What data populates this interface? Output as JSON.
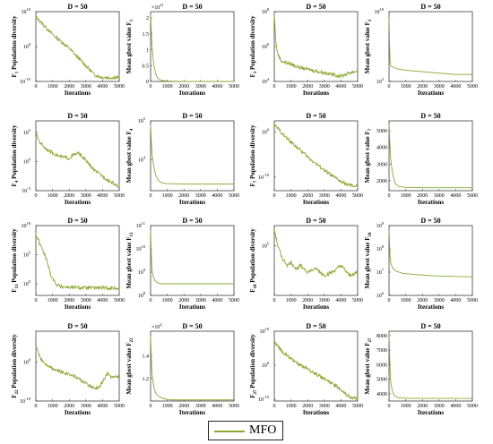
{
  "series_color": "#8aa832",
  "legend": {
    "label": "MFO"
  },
  "chart_data": [
    {
      "type": "line",
      "panel": 1,
      "title": "D = 50",
      "xlabel": "Iterations",
      "ylabel_sym": "F",
      "ylabel_sub": "1",
      "ylabel_text": "Population diversity",
      "scale": "log",
      "xlim": [
        0,
        5000
      ],
      "ylim_exp": [
        -10,
        10
      ],
      "yticks": [
        "10",
        "0",
        "-10"
      ],
      "ymult": null,
      "series": [
        {
          "name": "MFO",
          "x": [
            0,
            300,
            600,
            1000,
            1500,
            2000,
            2500,
            3000,
            3500,
            3800,
            4000,
            4500,
            5000
          ],
          "y": [
            8.5,
            7,
            5.5,
            3.5,
            1.5,
            -0.5,
            -3,
            -5.5,
            -8,
            -8.6,
            -8.8,
            -8.9,
            -8.8
          ]
        }
      ]
    },
    {
      "type": "line",
      "panel": 2,
      "title": "D = 50",
      "xlabel": "Iterations",
      "ylabel_sym": "Mean gbest value F",
      "ylabel_sub": "1",
      "ylabel_text": "",
      "scale": "linear",
      "xlim": [
        0,
        5000
      ],
      "ylim": [
        0,
        2.2
      ],
      "yticks": [
        0,
        0.5,
        1,
        1.5,
        2
      ],
      "ymult": "11",
      "series": [
        {
          "name": "MFO",
          "x": [
            0,
            50,
            100,
            200,
            300,
            400,
            600,
            1000,
            2000,
            3000,
            5000
          ],
          "y": [
            2.1,
            1.5,
            1.0,
            0.5,
            0.25,
            0.12,
            0.04,
            0.01,
            0,
            0,
            0
          ]
        }
      ]
    },
    {
      "type": "line",
      "panel": 3,
      "title": "D = 50",
      "xlabel": "Iterations",
      "ylabel_sym": "F",
      "ylabel_sub": "3",
      "ylabel_text": "Population diversity",
      "scale": "log",
      "xlim": [
        0,
        5000
      ],
      "ylim_exp": [
        4,
        8
      ],
      "yticks": [
        "8",
        "6",
        "4"
      ],
      "ymult": null,
      "series": [
        {
          "name": "MFO",
          "x": [
            0,
            100,
            200,
            400,
            600,
            1000,
            1500,
            2000,
            2500,
            3000,
            3500,
            4000,
            4500,
            5000
          ],
          "y": [
            7.8,
            6.2,
            5.6,
            5.2,
            5.1,
            5.0,
            4.8,
            4.7,
            4.6,
            4.5,
            4.4,
            4.3,
            4.5,
            4.6
          ]
        }
      ]
    },
    {
      "type": "line",
      "panel": 4,
      "title": "D = 50",
      "xlabel": "Iterations",
      "ylabel_sym": "Mean gbest value F",
      "ylabel_sub": "3",
      "ylabel_text": "",
      "scale": "log",
      "xlim": [
        0,
        5000
      ],
      "ylim_exp": [
        5,
        10
      ],
      "yticks": [
        "10",
        "5"
      ],
      "ymult": null,
      "series": [
        {
          "name": "MFO",
          "x": [
            0,
            50,
            100,
            500,
            1000,
            2000,
            3000,
            4000,
            5000
          ],
          "y": [
            9.6,
            6.5,
            6.1,
            5.9,
            5.8,
            5.7,
            5.6,
            5.5,
            5.5
          ]
        }
      ]
    },
    {
      "type": "line",
      "panel": 5,
      "title": "D = 50",
      "xlabel": "Iterations",
      "ylabel_sym": "F",
      "ylabel_sub": "4",
      "ylabel_text": "Population diversity",
      "scale": "log",
      "xlim": [
        0,
        5000
      ],
      "ylim_exp": [
        -5,
        7
      ],
      "yticks": [
        "5",
        "0",
        "-5"
      ],
      "ymult": null,
      "series": [
        {
          "name": "MFO",
          "x": [
            0,
            200,
            500,
            800,
            1000,
            1500,
            2000,
            2300,
            2600,
            2900,
            3200,
            3500,
            4000,
            4500,
            5000
          ],
          "y": [
            4.8,
            3.5,
            2.5,
            1.8,
            1.5,
            0.8,
            0.6,
            1.2,
            1.4,
            0.5,
            -0.5,
            -1.5,
            -2.5,
            -3.5,
            -4.3
          ]
        }
      ]
    },
    {
      "type": "line",
      "panel": 6,
      "title": "D = 50",
      "xlabel": "Iterations",
      "ylabel_sym": "Mean gbest value F",
      "ylabel_sub": "4",
      "ylabel_text": "",
      "scale": "log",
      "xlim": [
        0,
        5000
      ],
      "ylim_exp": [
        3.2,
        5
      ],
      "yticks": [
        "5",
        "4"
      ],
      "ymult": null,
      "series": [
        {
          "name": "MFO",
          "x": [
            0,
            50,
            100,
            200,
            300,
            500,
            700,
            1000,
            2000,
            3000,
            5000
          ],
          "y": [
            4.9,
            4.4,
            4.1,
            3.8,
            3.6,
            3.45,
            3.4,
            3.38,
            3.37,
            3.37,
            3.37
          ]
        }
      ]
    },
    {
      "type": "line",
      "panel": 7,
      "title": "D = 50",
      "xlabel": "Iterations",
      "ylabel_sym": "F",
      "ylabel_sub": "7",
      "ylabel_text": "Population diversity",
      "scale": "log",
      "xlim": [
        0,
        5000
      ],
      "ylim_exp": [
        -13,
        2.5
      ],
      "yticks": [
        "0",
        "-10"
      ],
      "ymult": null,
      "series": [
        {
          "name": "MFO",
          "x": [
            0,
            300,
            600,
            1000,
            1500,
            2000,
            2500,
            3000,
            3500,
            4000,
            4500,
            4800,
            5000
          ],
          "y": [
            1.5,
            0.5,
            -0.8,
            -2.2,
            -3.8,
            -5.5,
            -7,
            -8.5,
            -9.8,
            -11,
            -11.8,
            -12,
            -12
          ]
        }
      ]
    },
    {
      "type": "line",
      "panel": 8,
      "title": "D = 50",
      "xlabel": "Iterations",
      "ylabel_sym": "Mean gbest value F",
      "ylabel_sub": "7",
      "ylabel_text": "",
      "scale": "linear",
      "xlim": [
        0,
        5000
      ],
      "ylim": [
        1400,
        5600
      ],
      "yticks": [
        2000,
        3000,
        4000,
        5000
      ],
      "ymult": null,
      "series": [
        {
          "name": "MFO",
          "x": [
            0,
            50,
            100,
            200,
            300,
            400,
            600,
            1000,
            2000,
            3000,
            5000
          ],
          "y": [
            5400,
            4200,
            3300,
            2500,
            2050,
            1800,
            1650,
            1600,
            1580,
            1580,
            1580
          ]
        }
      ]
    },
    {
      "type": "line",
      "panel": 9,
      "title": "D = 50",
      "xlabel": "Iterations",
      "ylabel_sym": "F",
      "ylabel_sub": "13",
      "ylabel_text": "Population diversity",
      "scale": "log",
      "xlim": [
        0,
        5000
      ],
      "ylim_exp": [
        -2,
        10
      ],
      "yticks": [
        "10",
        "5",
        "0"
      ],
      "ymult": null,
      "series": [
        {
          "name": "MFO",
          "x": [
            0,
            300,
            600,
            900,
            1200,
            1500,
            2000,
            3000,
            4000,
            5000
          ],
          "y": [
            8.5,
            6.5,
            4.5,
            1.5,
            0,
            -0.5,
            -0.6,
            -0.7,
            -0.7,
            -0.8
          ]
        }
      ]
    },
    {
      "type": "line",
      "panel": 10,
      "title": "D = 50",
      "xlabel": "Iterations",
      "ylabel_sym": "Mean gbest value F",
      "ylabel_sub": "13",
      "ylabel_text": "",
      "scale": "log",
      "xlim": [
        0,
        5000
      ],
      "ylim_exp": [
        8,
        11
      ],
      "yticks": [
        "11",
        "10",
        "9",
        "8"
      ],
      "ymult": null,
      "series": [
        {
          "name": "MFO",
          "x": [
            0,
            50,
            100,
            200,
            400,
            600,
            1000,
            2000,
            3000,
            5000
          ],
          "y": [
            10.8,
            9.5,
            9,
            8.7,
            8.55,
            8.5,
            8.5,
            8.5,
            8.5,
            8.5
          ]
        }
      ]
    },
    {
      "type": "line",
      "panel": 11,
      "title": "D = 50",
      "xlabel": "Iterations",
      "ylabel_sym": "F",
      "ylabel_sub": "18",
      "ylabel_text": "Population diversity",
      "scale": "log",
      "xlim": [
        0,
        5000
      ],
      "ylim_exp": [
        3.5,
        5.6
      ],
      "yticks": [
        "5"
      ],
      "ymult": null,
      "series": [
        {
          "name": "MFO",
          "x": [
            0,
            200,
            500,
            800,
            1000,
            1300,
            1600,
            2000,
            2500,
            3000,
            3500,
            4000,
            4500,
            5000
          ],
          "y": [
            5.5,
            5.0,
            4.6,
            4.4,
            4.5,
            4.3,
            4.4,
            4.2,
            4.3,
            4.1,
            4.2,
            4.4,
            4.1,
            4.2
          ]
        }
      ]
    },
    {
      "type": "line",
      "panel": 12,
      "title": "D = 50",
      "xlabel": "Iterations",
      "ylabel_sym": "Mean gbest value F",
      "ylabel_sub": "18",
      "ylabel_text": "",
      "scale": "log",
      "xlim": [
        0,
        5000
      ],
      "ylim_exp": [
        6,
        9
      ],
      "yticks": [
        "9",
        "8",
        "7",
        "6"
      ],
      "ymult": null,
      "series": [
        {
          "name": "MFO",
          "x": [
            0,
            50,
            100,
            200,
            400,
            800,
            1500,
            2500,
            3500,
            5000
          ],
          "y": [
            8.8,
            7.8,
            7.4,
            7.2,
            7.05,
            6.95,
            6.9,
            6.85,
            6.82,
            6.8
          ]
        }
      ]
    },
    {
      "type": "line",
      "panel": 13,
      "title": "D = 50",
      "xlabel": "Iterations",
      "ylabel_sym": "F",
      "ylabel_sub": "22",
      "ylabel_text": "Population diversity",
      "scale": "log",
      "xlim": [
        0,
        5000
      ],
      "ylim_exp": [
        -10,
        8
      ],
      "yticks": [
        "0",
        "-10"
      ],
      "ymult": null,
      "series": [
        {
          "name": "MFO",
          "x": [
            0,
            300,
            600,
            1000,
            1500,
            2000,
            2500,
            3000,
            3500,
            3800,
            4000,
            4300,
            4600,
            5000
          ],
          "y": [
            4,
            1,
            -0.5,
            -1.5,
            -2.5,
            -3,
            -4,
            -5.5,
            -6.8,
            -6.5,
            -5,
            -3,
            -4,
            -3.5
          ]
        }
      ]
    },
    {
      "type": "line",
      "panel": 14,
      "title": "D = 50",
      "xlabel": "Iterations",
      "ylabel_sym": "Mean gbest value F",
      "ylabel_sub": "22",
      "ylabel_text": "",
      "scale": "linear",
      "xlim": [
        0,
        5000
      ],
      "ylim": [
        1,
        1.62
      ],
      "yticks": [
        1.2,
        1.4
      ],
      "ymult": "4",
      "series": [
        {
          "name": "MFO",
          "x": [
            0,
            50,
            100,
            200,
            300,
            500,
            800,
            1200,
            2000,
            3000,
            5000
          ],
          "y": [
            1.58,
            1.35,
            1.22,
            1.12,
            1.07,
            1.04,
            1.02,
            1.01,
            1.01,
            1.01,
            1.01
          ]
        }
      ]
    },
    {
      "type": "line",
      "panel": 15,
      "title": "D = 50",
      "xlabel": "Iterations",
      "ylabel_sym": "F",
      "ylabel_sub": "27",
      "ylabel_text": "Population diversity",
      "scale": "log",
      "xlim": [
        0,
        5000
      ],
      "ylim_exp": [
        -10.5,
        10
      ],
      "yticks": [
        "10",
        "0",
        "-10"
      ],
      "ymult": null,
      "series": [
        {
          "name": "MFO",
          "x": [
            0,
            300,
            600,
            1000,
            1500,
            2000,
            2500,
            3000,
            3500,
            4000,
            4300,
            4600,
            5000
          ],
          "y": [
            7,
            5,
            3.5,
            2,
            0,
            -1,
            -2.5,
            -4,
            -5.5,
            -7,
            -8.5,
            -9.5,
            -9.8
          ]
        }
      ]
    },
    {
      "type": "line",
      "panel": 16,
      "title": "D = 50",
      "xlabel": "Iterations",
      "ylabel_sym": "Mean gbest value F",
      "ylabel_sub": "27",
      "ylabel_text": "",
      "scale": "linear",
      "xlim": [
        0,
        5000
      ],
      "ylim": [
        3500,
        8300
      ],
      "yticks": [
        4000,
        5000,
        6000,
        7000,
        8000
      ],
      "ymult": null,
      "series": [
        {
          "name": "MFO",
          "x": [
            0,
            50,
            100,
            200,
            300,
            500,
            800,
            1200,
            2000,
            3000,
            5000
          ],
          "y": [
            8200,
            6000,
            4800,
            4200,
            3900,
            3750,
            3700,
            3680,
            3680,
            3680,
            3680
          ]
        }
      ]
    }
  ]
}
